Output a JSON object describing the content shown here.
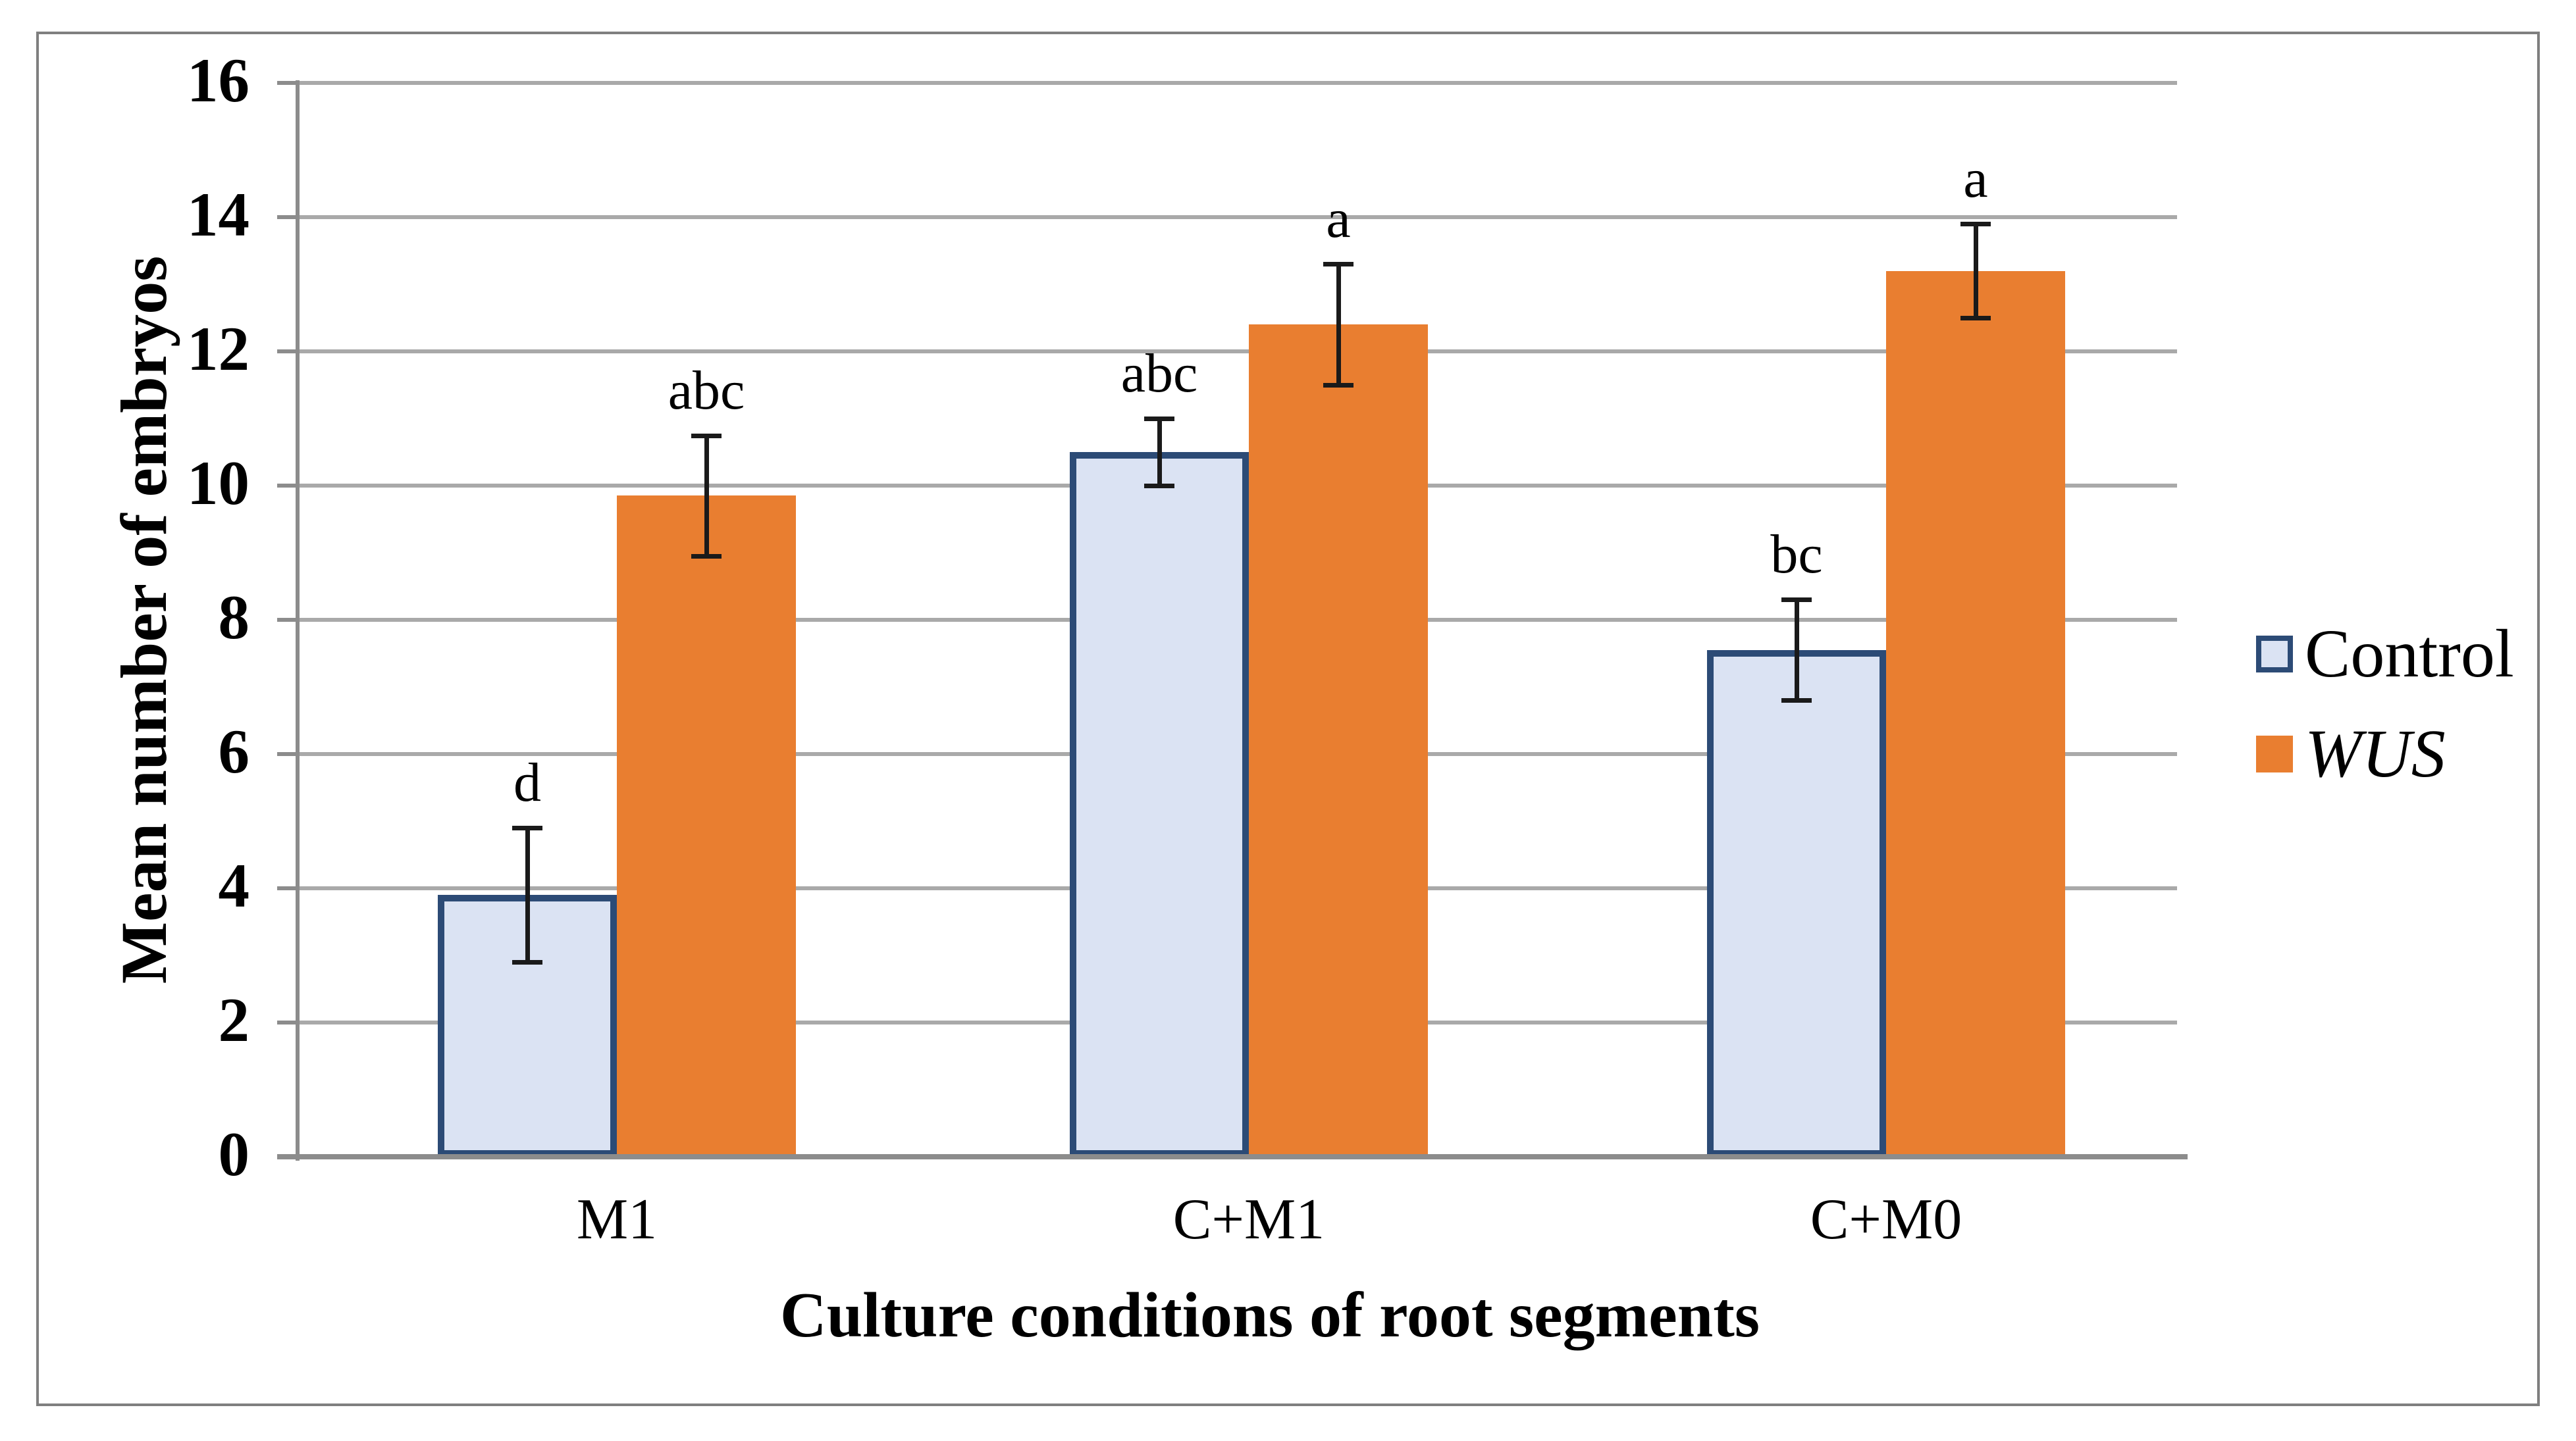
{
  "figure": {
    "y_axis_title": "Mean number of embryos",
    "x_axis_title": "Culture conditions of root segments"
  },
  "chart_data": {
    "type": "bar",
    "title": "",
    "xlabel": "Culture conditions of root segments",
    "ylabel": "Mean number of embryos",
    "ylim": [
      0,
      16
    ],
    "y_tick_step": 2,
    "y_ticks": [
      16,
      14,
      12,
      10,
      8,
      6,
      4,
      2,
      0
    ],
    "grid": true,
    "legend_position": "right",
    "categories": [
      "M1",
      "C+M1",
      "C+M0"
    ],
    "series": [
      {
        "name": "Control",
        "italic": false,
        "fill": "#DBE3F3",
        "border": "#2C4B76",
        "values": [
          3.9,
          10.5,
          7.55
        ],
        "errors": [
          1.0,
          0.5,
          0.75
        ],
        "sig_labels": [
          "d",
          "abc",
          "bc"
        ]
      },
      {
        "name": "WUS",
        "italic": true,
        "fill": "#E97E30",
        "border": "none",
        "values": [
          9.85,
          12.4,
          13.2
        ],
        "errors": [
          0.9,
          0.9,
          0.7
        ],
        "sig_labels": [
          "abc",
          "a",
          "a"
        ]
      }
    ]
  },
  "colors": {
    "orange": "#E97E30",
    "control_fill": "#DBE3F3",
    "control_border": "#2C4B76",
    "gridline": "#A9A9A9",
    "axis": "#8C8C8C",
    "frame": "#7F7F7F",
    "error": "#1A1A1A",
    "text": "#000000"
  }
}
